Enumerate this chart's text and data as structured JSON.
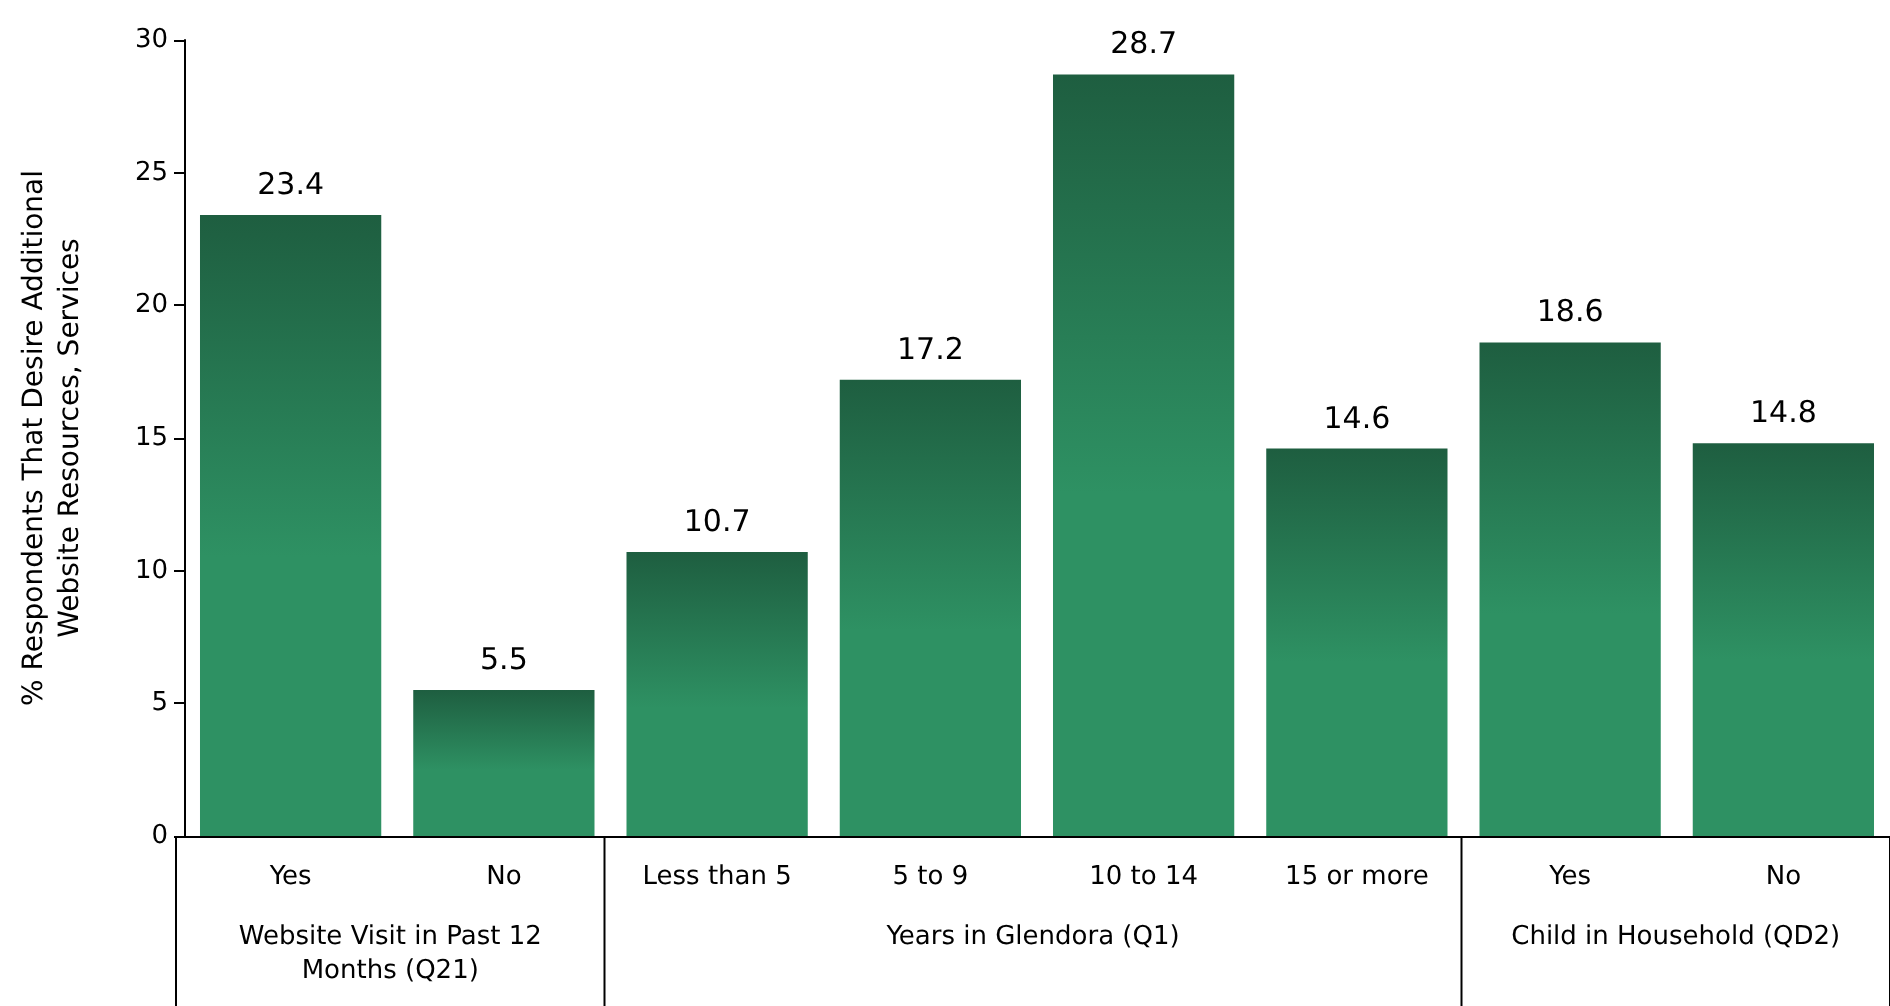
{
  "chart_data": {
    "type": "bar",
    "ylabel": "% Respondents That Desire Additional\nWebsite Resources, Services",
    "categories": [
      "Yes",
      "No",
      "Less than 5",
      "5 to 9",
      "10 to 14",
      "15 or more",
      "Yes",
      "No"
    ],
    "values": [
      23.4,
      5.5,
      10.7,
      17.2,
      28.7,
      14.6,
      18.6,
      14.8
    ],
    "color": "#2e9163",
    "ylim": [
      0,
      30
    ],
    "yticks": [
      0,
      5,
      10,
      15,
      20,
      25,
      30
    ],
    "data_labels": true,
    "annotations": [
      "Website Visit in Past 12\nMonths (Q21)",
      "Years in Glendora (Q1)",
      "Child in Household (QD2)"
    ]
  }
}
